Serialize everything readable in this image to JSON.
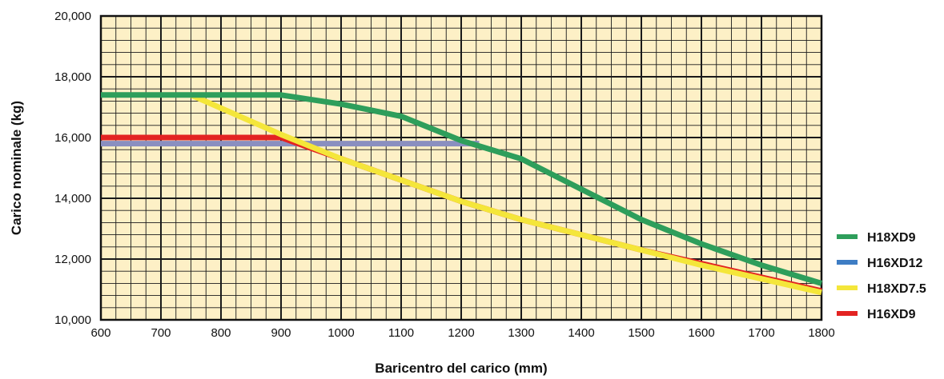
{
  "chart_data": {
    "type": "line",
    "title": "",
    "xlabel": "Baricentro del carico (mm)",
    "ylabel": "Carico nominale (kg)",
    "xlim": [
      600,
      1800
    ],
    "ylim": [
      10000,
      20000
    ],
    "x_ticks": [
      "600",
      "700",
      "800",
      "900",
      "1000",
      "1100",
      "1200",
      "1300",
      "1400",
      "1500",
      "1600",
      "1700",
      "1800"
    ],
    "y_ticks": [
      "10,000",
      "12,000",
      "14,000",
      "16,000",
      "18,000",
      "20,000"
    ],
    "grid": true,
    "background_color": "#fdf0c6",
    "legend_position": "right",
    "series": [
      {
        "name": "H16XD12",
        "color": "#8a8fc0",
        "x": [
          600,
          1230
        ],
        "y": [
          15800,
          15800
        ]
      },
      {
        "name": "H16XD9",
        "color": "#e32322",
        "x": [
          600,
          900,
          1000,
          1100,
          1200,
          1300,
          1400,
          1500,
          1600,
          1700,
          1800
        ],
        "y": [
          16000,
          16000,
          15300,
          14600,
          13900,
          13300,
          12800,
          12300,
          11850,
          11400,
          10950
        ]
      },
      {
        "name": "H18XD7.5",
        "color": "#f4e63a",
        "x": [
          750,
          900,
          1000,
          1100,
          1200,
          1300,
          1400,
          1500,
          1600,
          1700,
          1800
        ],
        "y": [
          17400,
          16100,
          15300,
          14600,
          13900,
          13300,
          12800,
          12300,
          11800,
          11350,
          10900
        ]
      },
      {
        "name": "H18XD9",
        "color": "#2e9e5b",
        "x": [
          600,
          900,
          1000,
          1100,
          1200,
          1300,
          1400,
          1500,
          1600,
          1700,
          1800
        ],
        "y": [
          17400,
          17400,
          17100,
          16700,
          15900,
          15300,
          14300,
          13300,
          12500,
          11800,
          11200
        ]
      }
    ],
    "legend": [
      {
        "name": "H18XD9",
        "color": "#2e9e5b"
      },
      {
        "name": "H16XD12",
        "color": "#3e7dc4"
      },
      {
        "name": "H18XD7.5",
        "color": "#f4e63a"
      },
      {
        "name": "H16XD9",
        "color": "#e32322"
      }
    ]
  }
}
